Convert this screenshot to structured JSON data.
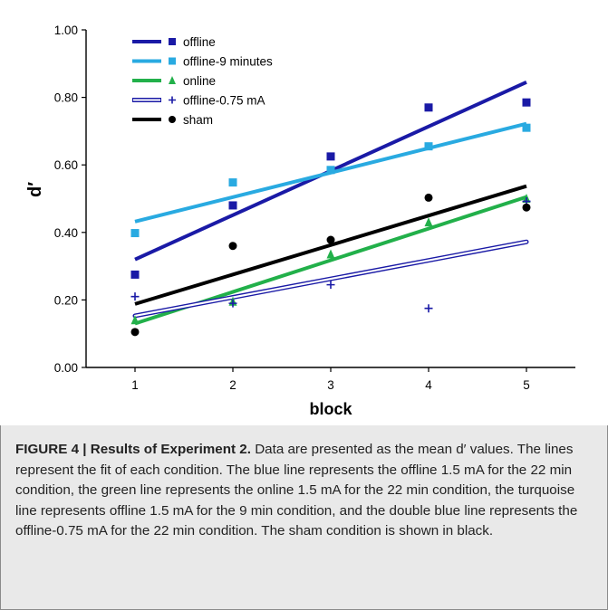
{
  "chart_data": {
    "type": "scatter",
    "xlabel": "block",
    "ylabel": "d′",
    "x": [
      1,
      2,
      3,
      4,
      5
    ],
    "x_ticks": [
      "1",
      "2",
      "3",
      "4",
      "5"
    ],
    "xlim": [
      0.5,
      5.5
    ],
    "ylim": [
      0.0,
      1.0
    ],
    "y_ticks": [
      "0.00",
      "0.20",
      "0.40",
      "0.60",
      "0.80",
      "1.00"
    ],
    "grid": false,
    "legend_position": "top-left",
    "series": [
      {
        "name": "offline",
        "marker": "square",
        "color": "#1a1aa6",
        "line_style": "solid",
        "values": [
          0.275,
          0.48,
          0.625,
          0.77,
          0.785
        ],
        "fit": [
          0.32,
          0.845
        ]
      },
      {
        "name": "offline-9 minutes",
        "marker": "square",
        "color": "#29aae1",
        "line_style": "solid",
        "values": [
          0.398,
          0.548,
          0.585,
          0.655,
          0.71
        ],
        "fit": [
          0.432,
          0.722
        ]
      },
      {
        "name": "online",
        "marker": "triangle",
        "color": "#22b04a",
        "line_style": "solid",
        "values": [
          0.14,
          0.195,
          0.335,
          0.43,
          0.5
        ],
        "fit": [
          0.13,
          0.505
        ]
      },
      {
        "name": "offline-0.75 mA",
        "marker": "plus",
        "color": "#1a1aa6",
        "line_style": "double",
        "values": [
          0.21,
          0.19,
          0.245,
          0.175,
          0.492
        ],
        "fit": [
          0.153,
          0.372
        ]
      },
      {
        "name": "sham",
        "marker": "circle",
        "color": "#000000",
        "line_style": "solid",
        "values": [
          0.105,
          0.36,
          0.378,
          0.503,
          0.474
        ],
        "fit": [
          0.188,
          0.537
        ]
      }
    ]
  },
  "caption": {
    "heading": "FIGURE 4 | Results of Experiment 2.",
    "body": " Data are presented as the mean d′ values. The lines represent the fit of each condition. The blue line represents the offline 1.5 mA for the 22 min condition, the green line represents the online 1.5 mA for the 22 min condition, the turquoise line represents offline 1.5 mA for the 9 min condition, and the double blue line represents the offline-0.75 mA for the 22 min condition. The sham condition is shown in black."
  }
}
